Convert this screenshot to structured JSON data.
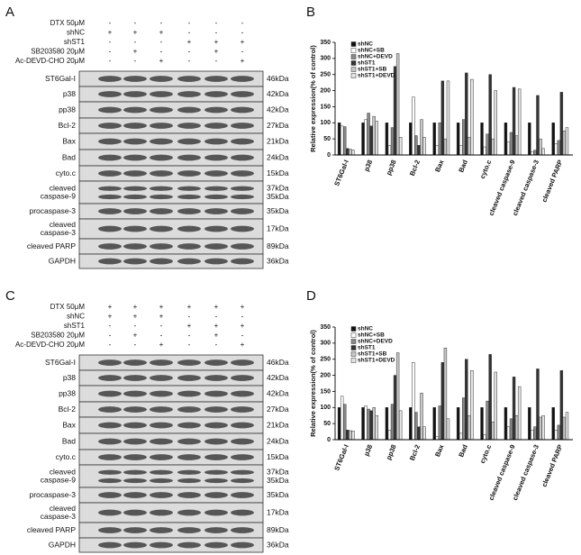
{
  "panel_a": {
    "label": "A",
    "treatments": [
      {
        "name": "DTX 50μM",
        "signs": [
          "-",
          "-",
          "-",
          "-",
          "-",
          "-"
        ]
      },
      {
        "name": "shNC",
        "signs": [
          "+",
          "+",
          "+",
          "-",
          "-",
          "-"
        ]
      },
      {
        "name": "shST1",
        "signs": [
          "-",
          "-",
          "-",
          "+",
          "+",
          "+"
        ]
      },
      {
        "name": "SB203580 20μM",
        "signs": [
          "-",
          "+",
          "-",
          "-",
          "+",
          "-"
        ]
      },
      {
        "name": "Ac-DEVD-CHO 20μM",
        "signs": [
          "-",
          "-",
          "+",
          "-",
          "-",
          "+"
        ]
      }
    ],
    "blots": [
      {
        "name": [
          "ST6Gal-I"
        ],
        "kda": [
          "46kDa"
        ]
      },
      {
        "name": [
          "p38"
        ],
        "kda": [
          "42kDa"
        ]
      },
      {
        "name": [
          "pp38"
        ],
        "kda": [
          "42kDa"
        ]
      },
      {
        "name": [
          "Bcl-2"
        ],
        "kda": [
          "27kDa"
        ]
      },
      {
        "name": [
          "Bax"
        ],
        "kda": [
          "21kDa"
        ]
      },
      {
        "name": [
          "Bad"
        ],
        "kda": [
          "24kDa"
        ]
      },
      {
        "name": [
          "cyto.c"
        ],
        "kda": [
          "15kDa"
        ]
      },
      {
        "name": [
          "cleaved",
          "caspase-9"
        ],
        "kda": [
          "37kDa",
          "35kDa"
        ]
      },
      {
        "name": [
          "procaspase-3"
        ],
        "kda": [
          "35kDa"
        ]
      },
      {
        "name": [
          "cleaved",
          "caspase-3"
        ],
        "kda": [
          "17kDa"
        ]
      },
      {
        "name": [
          "cleaved PARP"
        ],
        "kda": [
          "89kDa"
        ]
      },
      {
        "name": [
          "GAPDH"
        ],
        "kda": [
          "36kDa"
        ]
      }
    ]
  },
  "panel_c": {
    "label": "C",
    "treatments": [
      {
        "name": "DTX 50μM",
        "signs": [
          "+",
          "+",
          "+",
          "+",
          "+",
          "+"
        ]
      },
      {
        "name": "shNC",
        "signs": [
          "+",
          "+",
          "+",
          "-",
          "-",
          "-"
        ]
      },
      {
        "name": "shST1",
        "signs": [
          "-",
          "-",
          "-",
          "+",
          "+",
          "+"
        ]
      },
      {
        "name": "SB203580 20μM",
        "signs": [
          "-",
          "+",
          "-",
          "-",
          "+",
          "-"
        ]
      },
      {
        "name": "Ac-DEVD-CHO 20μM",
        "signs": [
          "-",
          "-",
          "+",
          "-",
          "-",
          "+"
        ]
      }
    ],
    "blots": [
      {
        "name": [
          "ST6Gal-I"
        ],
        "kda": [
          "46kDa"
        ]
      },
      {
        "name": [
          "p38"
        ],
        "kda": [
          "42kDa"
        ]
      },
      {
        "name": [
          "pp38"
        ],
        "kda": [
          "42kDa"
        ]
      },
      {
        "name": [
          "Bcl-2"
        ],
        "kda": [
          "27kDa"
        ]
      },
      {
        "name": [
          "Bax"
        ],
        "kda": [
          "21kDa"
        ]
      },
      {
        "name": [
          "Bad"
        ],
        "kda": [
          "24kDa"
        ]
      },
      {
        "name": [
          "cyto.c"
        ],
        "kda": [
          "15kDa"
        ]
      },
      {
        "name": [
          "cleaved",
          "caspase-9"
        ],
        "kda": [
          "37kDa",
          "35kDa"
        ]
      },
      {
        "name": [
          "procaspase-3"
        ],
        "kda": [
          "35kDa"
        ]
      },
      {
        "name": [
          "cleaved",
          "caspase-3"
        ],
        "kda": [
          "17kDa"
        ]
      },
      {
        "name": [
          "cleaved PARP"
        ],
        "kda": [
          "89kDa"
        ]
      },
      {
        "name": [
          "GAPDH"
        ],
        "kda": [
          "36kDa"
        ]
      }
    ]
  },
  "chart_data": [
    {
      "type": "bar",
      "title": "B",
      "y_label": "Relative expression(% of control)",
      "categories": [
        "ST6Gal-I",
        "p38",
        "pp38",
        "Bcl-2",
        "Bax",
        "Bad",
        "cyto.c",
        "cleaved caspase-9",
        "cleaved caspase-3",
        "cleaved PARP"
      ],
      "ylim": [
        0,
        350
      ],
      "yticks": [
        0,
        50,
        100,
        150,
        200,
        250,
        300,
        350
      ],
      "legend": "top-left",
      "series": [
        {
          "name": "shNC",
          "color": "#111111",
          "values": [
            100,
            100,
            100,
            100,
            100,
            100,
            100,
            100,
            100,
            100
          ]
        },
        {
          "name": "shNC+SB",
          "color": "#ffffff",
          "values": [
            90,
            110,
            30,
            180,
            30,
            30,
            25,
            40,
            10,
            35
          ]
        },
        {
          "name": "shNC+DEVD",
          "color": "#8a8a8a",
          "values": [
            88,
            130,
            85,
            60,
            100,
            110,
            65,
            70,
            15,
            45
          ]
        },
        {
          "name": "shST1",
          "color": "#333333",
          "values": [
            20,
            90,
            275,
            30,
            230,
            255,
            250,
            210,
            185,
            195
          ]
        },
        {
          "name": "shST1+SB",
          "color": "#c8c8c8",
          "values": [
            18,
            120,
            315,
            110,
            50,
            55,
            50,
            60,
            50,
            75
          ]
        },
        {
          "name": "shST1+DEVD",
          "color": "#e4e4e4",
          "values": [
            15,
            105,
            55,
            55,
            230,
            235,
            200,
            205,
            20,
            85
          ]
        }
      ]
    },
    {
      "type": "bar",
      "title": "D",
      "y_label": "Relative expression(% of control)",
      "categories": [
        "ST6Gal-I",
        "p38",
        "pp38",
        "Bcl-2",
        "Bax",
        "Bad",
        "cyto.c",
        "cleaved caspase-9",
        "cleaved caspase-3",
        "cleaved PARP"
      ],
      "ylim": [
        0,
        350
      ],
      "yticks": [
        0,
        50,
        100,
        150,
        200,
        250,
        300,
        350
      ],
      "legend": "top-left",
      "series": [
        {
          "name": "shNC",
          "color": "#111111",
          "values": [
            100,
            100,
            100,
            100,
            100,
            100,
            100,
            100,
            100,
            100
          ]
        },
        {
          "name": "shNC+SB",
          "color": "#ffffff",
          "values": [
            135,
            105,
            30,
            240,
            10,
            20,
            15,
            40,
            30,
            30
          ]
        },
        {
          "name": "shNC+DEVD",
          "color": "#8a8a8a",
          "values": [
            110,
            95,
            110,
            85,
            105,
            130,
            120,
            65,
            40,
            45
          ]
        },
        {
          "name": "shST1",
          "color": "#333333",
          "values": [
            30,
            90,
            200,
            40,
            240,
            250,
            265,
            195,
            220,
            215
          ]
        },
        {
          "name": "shST1+SB",
          "color": "#c8c8c8",
          "values": [
            28,
            100,
            270,
            145,
            285,
            75,
            55,
            75,
            70,
            70
          ]
        },
        {
          "name": "shST1+DEVD",
          "color": "#e4e4e4",
          "values": [
            27,
            75,
            90,
            40,
            65,
            215,
            210,
            165,
            75,
            85
          ]
        }
      ]
    }
  ]
}
